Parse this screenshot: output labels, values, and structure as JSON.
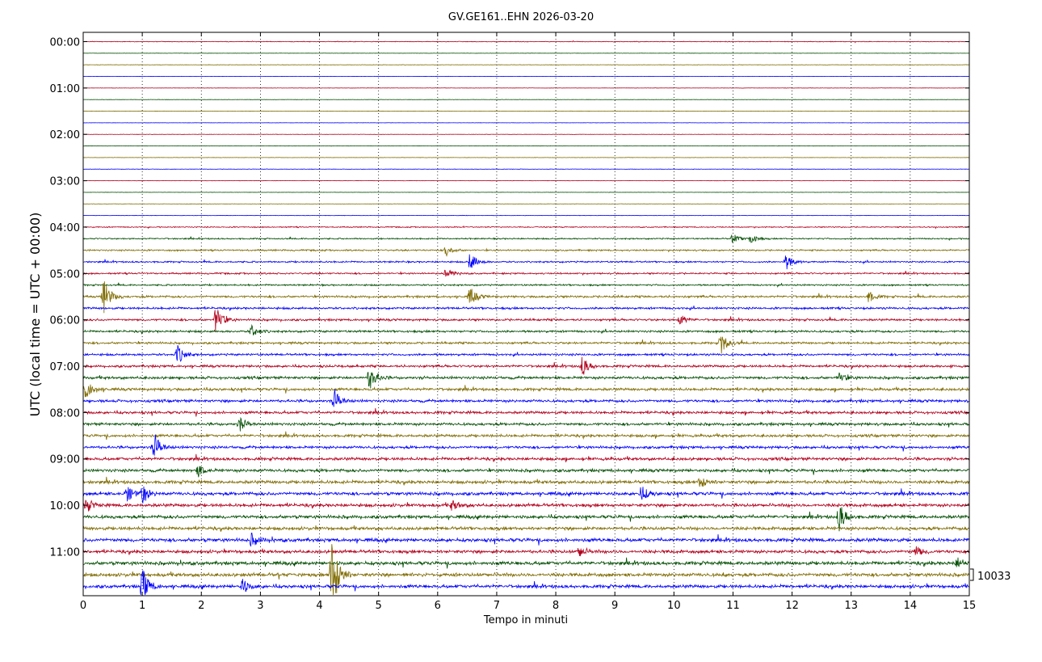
{
  "chart_data": {
    "type": "line",
    "title": "GV.GE161..EHN 2026-03-20",
    "xlabel": "Tempo in minuti",
    "ylabel": "UTC (local time = UTC + 00:00)",
    "xlim": [
      0,
      15
    ],
    "x_ticks": [
      "0",
      "1",
      "2",
      "3",
      "4",
      "5",
      "6",
      "7",
      "8",
      "9",
      "10",
      "11",
      "12",
      "13",
      "14",
      "15"
    ],
    "y_ticks": [
      "00:00",
      "01:00",
      "02:00",
      "03:00",
      "04:00",
      "05:00",
      "06:00",
      "07:00",
      "08:00",
      "09:00",
      "10:00",
      "11:00"
    ],
    "grid": "vertical dotted at each minute",
    "trace_colors": [
      "#b2001c",
      "#004d00",
      "#7f6b00",
      "#0000ff"
    ],
    "trace_count": 48,
    "trace_interval_minutes": 15,
    "scale_label": "10033",
    "trace_activity": [
      0.25,
      0.1,
      0.15,
      0.1,
      0.12,
      0.1,
      0.12,
      0.1,
      0.12,
      0.1,
      0.12,
      0.15,
      0.12,
      0.1,
      0.12,
      0.15,
      0.4,
      0.5,
      0.6,
      0.6,
      0.6,
      0.6,
      0.8,
      0.8,
      0.8,
      0.8,
      0.8,
      0.8,
      0.9,
      1.0,
      1.0,
      1.0,
      1.0,
      1.0,
      1.0,
      1.0,
      1.1,
      1.1,
      1.2,
      1.2,
      1.2,
      1.2,
      1.2,
      1.3,
      1.2,
      1.3,
      1.3,
      1.2
    ],
    "events": [
      {
        "trace": 17,
        "minute": 11.0,
        "amp": 6
      },
      {
        "trace": 17,
        "minute": 11.3,
        "amp": 6
      },
      {
        "trace": 18,
        "minute": 6.15,
        "amp": 7
      },
      {
        "trace": 19,
        "minute": 6.55,
        "amp": 12
      },
      {
        "trace": 19,
        "minute": 11.9,
        "amp": 10
      },
      {
        "trace": 20,
        "minute": 6.15,
        "amp": 9
      },
      {
        "trace": 22,
        "minute": 0.35,
        "amp": 22
      },
      {
        "trace": 22,
        "minute": 6.55,
        "amp": 12
      },
      {
        "trace": 22,
        "minute": 13.3,
        "amp": 7
      },
      {
        "trace": 24,
        "minute": 2.25,
        "amp": 18
      },
      {
        "trace": 24,
        "minute": 10.1,
        "amp": 7
      },
      {
        "trace": 25,
        "minute": 2.85,
        "amp": 8
      },
      {
        "trace": 26,
        "minute": 10.8,
        "amp": 14
      },
      {
        "trace": 27,
        "minute": 1.6,
        "amp": 12
      },
      {
        "trace": 28,
        "minute": 8.45,
        "amp": 13
      },
      {
        "trace": 29,
        "minute": 4.85,
        "amp": 16
      },
      {
        "trace": 29,
        "minute": 12.8,
        "amp": 6
      },
      {
        "trace": 30,
        "minute": 0.05,
        "amp": 14
      },
      {
        "trace": 31,
        "minute": 4.25,
        "amp": 14
      },
      {
        "trace": 33,
        "minute": 2.65,
        "amp": 9
      },
      {
        "trace": 35,
        "minute": 1.2,
        "amp": 18
      },
      {
        "trace": 37,
        "minute": 1.95,
        "amp": 7
      },
      {
        "trace": 38,
        "minute": 10.45,
        "amp": 8
      },
      {
        "trace": 39,
        "minute": 0.75,
        "amp": 10
      },
      {
        "trace": 39,
        "minute": 1.0,
        "amp": 12
      },
      {
        "trace": 39,
        "minute": 9.45,
        "amp": 9
      },
      {
        "trace": 40,
        "minute": 0.05,
        "amp": 9
      },
      {
        "trace": 40,
        "minute": 6.25,
        "amp": 7
      },
      {
        "trace": 41,
        "minute": 12.8,
        "amp": 18
      },
      {
        "trace": 43,
        "minute": 2.85,
        "amp": 8
      },
      {
        "trace": 44,
        "minute": 8.4,
        "amp": 7
      },
      {
        "trace": 44,
        "minute": 14.1,
        "amp": 6
      },
      {
        "trace": 45,
        "minute": 14.8,
        "amp": 7
      },
      {
        "trace": 46,
        "minute": 4.25,
        "amp": 14
      },
      {
        "trace": 46,
        "minute": 4.2,
        "amp": 40
      },
      {
        "trace": 47,
        "minute": 1.0,
        "amp": 24
      },
      {
        "trace": 47,
        "minute": 2.7,
        "amp": 9
      }
    ]
  }
}
